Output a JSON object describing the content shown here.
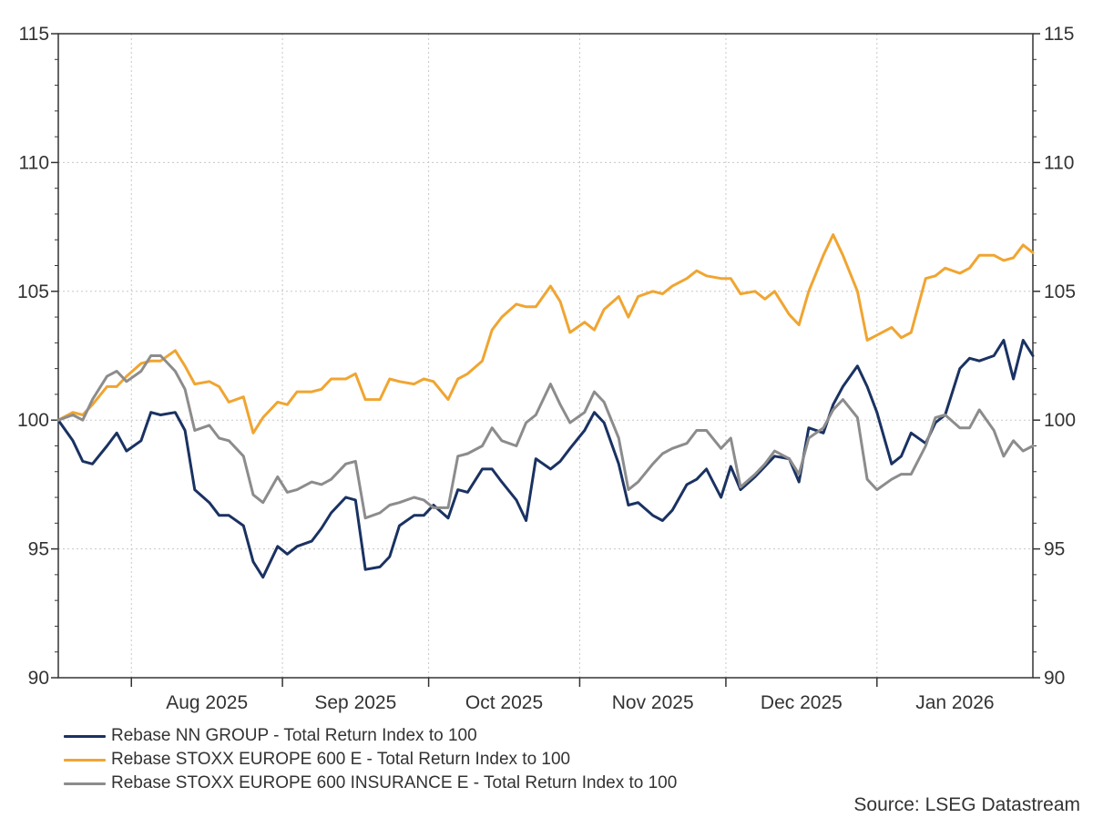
{
  "colors": {
    "nn_group": "#1a3262",
    "stoxx600": "#f0a531",
    "insurance": "#8c8c8c",
    "grid": "#c8c8c8",
    "axis": "#333333"
  },
  "source": "Source: LSEG Datastream",
  "chart_data": {
    "type": "line",
    "ylim": [
      90,
      115
    ],
    "yticks": [
      90,
      95,
      100,
      105,
      110,
      115
    ],
    "ytick_labels": [
      "90",
      "95",
      "100",
      "105",
      "110",
      "115"
    ],
    "x_range": [
      "2025-07-17",
      "2026-02-02"
    ],
    "x_tick_dates": [
      "2025-08-01",
      "2025-09-01",
      "2025-10-01",
      "2025-11-01",
      "2025-12-01",
      "2026-01-01"
    ],
    "x_tick_labels": [
      "Aug 2025",
      "Sep 2025",
      "Oct 2025",
      "Nov 2025",
      "Dec 2025",
      "Jan 2026"
    ],
    "grid": true,
    "legend_position": "bottom-left",
    "series": [
      {
        "name": "Rebase NN GROUP - Total Return Index to 100",
        "color": "#1a3262",
        "points": [
          [
            "2025-07-17",
            100.0
          ],
          [
            "2025-07-20",
            99.2
          ],
          [
            "2025-07-22",
            98.4
          ],
          [
            "2025-07-24",
            98.3
          ],
          [
            "2025-07-27",
            99.0
          ],
          [
            "2025-07-29",
            99.5
          ],
          [
            "2025-07-31",
            98.8
          ],
          [
            "2025-08-03",
            99.2
          ],
          [
            "2025-08-05",
            100.3
          ],
          [
            "2025-08-07",
            100.2
          ],
          [
            "2025-08-10",
            100.3
          ],
          [
            "2025-08-12",
            99.6
          ],
          [
            "2025-08-14",
            97.3
          ],
          [
            "2025-08-17",
            96.8
          ],
          [
            "2025-08-19",
            96.3
          ],
          [
            "2025-08-21",
            96.3
          ],
          [
            "2025-08-24",
            95.9
          ],
          [
            "2025-08-26",
            94.5
          ],
          [
            "2025-08-28",
            93.9
          ],
          [
            "2025-08-31",
            95.1
          ],
          [
            "2025-09-02",
            94.8
          ],
          [
            "2025-09-04",
            95.1
          ],
          [
            "2025-09-07",
            95.3
          ],
          [
            "2025-09-09",
            95.8
          ],
          [
            "2025-09-11",
            96.4
          ],
          [
            "2025-09-14",
            97.0
          ],
          [
            "2025-09-16",
            96.9
          ],
          [
            "2025-09-18",
            94.2
          ],
          [
            "2025-09-21",
            94.3
          ],
          [
            "2025-09-23",
            94.7
          ],
          [
            "2025-09-25",
            95.9
          ],
          [
            "2025-09-28",
            96.3
          ],
          [
            "2025-09-30",
            96.3
          ],
          [
            "2025-10-02",
            96.7
          ],
          [
            "2025-10-05",
            96.2
          ],
          [
            "2025-10-07",
            97.3
          ],
          [
            "2025-10-09",
            97.2
          ],
          [
            "2025-10-12",
            98.1
          ],
          [
            "2025-10-14",
            98.1
          ],
          [
            "2025-10-16",
            97.6
          ],
          [
            "2025-10-19",
            96.9
          ],
          [
            "2025-10-21",
            96.1
          ],
          [
            "2025-10-23",
            98.5
          ],
          [
            "2025-10-26",
            98.1
          ],
          [
            "2025-10-28",
            98.4
          ],
          [
            "2025-10-30",
            98.9
          ],
          [
            "2025-11-02",
            99.6
          ],
          [
            "2025-11-04",
            100.3
          ],
          [
            "2025-11-06",
            99.9
          ],
          [
            "2025-11-09",
            98.3
          ],
          [
            "2025-11-11",
            96.7
          ],
          [
            "2025-11-13",
            96.8
          ],
          [
            "2025-11-16",
            96.3
          ],
          [
            "2025-11-18",
            96.1
          ],
          [
            "2025-11-20",
            96.5
          ],
          [
            "2025-11-23",
            97.5
          ],
          [
            "2025-11-25",
            97.7
          ],
          [
            "2025-11-27",
            98.1
          ],
          [
            "2025-11-30",
            97.0
          ],
          [
            "2025-12-02",
            98.2
          ],
          [
            "2025-12-04",
            97.3
          ],
          [
            "2025-12-07",
            97.8
          ],
          [
            "2025-12-09",
            98.2
          ],
          [
            "2025-12-11",
            98.6
          ],
          [
            "2025-12-14",
            98.5
          ],
          [
            "2025-12-16",
            97.6
          ],
          [
            "2025-12-18",
            99.7
          ],
          [
            "2025-12-21",
            99.5
          ],
          [
            "2025-12-23",
            100.6
          ],
          [
            "2025-12-25",
            101.3
          ],
          [
            "2025-12-28",
            102.1
          ],
          [
            "2025-12-30",
            101.3
          ],
          [
            "2026-01-01",
            100.3
          ],
          [
            "2026-01-04",
            98.3
          ],
          [
            "2026-01-06",
            98.6
          ],
          [
            "2026-01-08",
            99.5
          ],
          [
            "2026-01-11",
            99.1
          ],
          [
            "2026-01-13",
            99.9
          ],
          [
            "2026-01-15",
            100.2
          ],
          [
            "2026-01-18",
            102.0
          ],
          [
            "2026-01-20",
            102.4
          ],
          [
            "2026-01-22",
            102.3
          ],
          [
            "2026-01-25",
            102.5
          ],
          [
            "2026-01-27",
            103.1
          ],
          [
            "2026-01-29",
            101.6
          ],
          [
            "2026-01-31",
            103.1
          ],
          [
            "2026-02-02",
            102.5
          ]
        ]
      },
      {
        "name": "Rebase STOXX EUROPE 600 E - Total Return Index to 100",
        "color": "#f0a531",
        "points": [
          [
            "2025-07-17",
            100.0
          ],
          [
            "2025-07-20",
            100.3
          ],
          [
            "2025-07-22",
            100.2
          ],
          [
            "2025-07-24",
            100.6
          ],
          [
            "2025-07-27",
            101.3
          ],
          [
            "2025-07-29",
            101.3
          ],
          [
            "2025-07-31",
            101.7
          ],
          [
            "2025-08-03",
            102.2
          ],
          [
            "2025-08-05",
            102.3
          ],
          [
            "2025-08-07",
            102.3
          ],
          [
            "2025-08-10",
            102.7
          ],
          [
            "2025-08-12",
            102.1
          ],
          [
            "2025-08-14",
            101.4
          ],
          [
            "2025-08-17",
            101.5
          ],
          [
            "2025-08-19",
            101.3
          ],
          [
            "2025-08-21",
            100.7
          ],
          [
            "2025-08-24",
            100.9
          ],
          [
            "2025-08-26",
            99.5
          ],
          [
            "2025-08-28",
            100.1
          ],
          [
            "2025-08-31",
            100.7
          ],
          [
            "2025-09-02",
            100.6
          ],
          [
            "2025-09-04",
            101.1
          ],
          [
            "2025-09-07",
            101.1
          ],
          [
            "2025-09-09",
            101.2
          ],
          [
            "2025-09-11",
            101.6
          ],
          [
            "2025-09-14",
            101.6
          ],
          [
            "2025-09-16",
            101.8
          ],
          [
            "2025-09-18",
            100.8
          ],
          [
            "2025-09-21",
            100.8
          ],
          [
            "2025-09-23",
            101.6
          ],
          [
            "2025-09-25",
            101.5
          ],
          [
            "2025-09-28",
            101.4
          ],
          [
            "2025-09-30",
            101.6
          ],
          [
            "2025-10-02",
            101.5
          ],
          [
            "2025-10-05",
            100.8
          ],
          [
            "2025-10-07",
            101.6
          ],
          [
            "2025-10-09",
            101.8
          ],
          [
            "2025-10-12",
            102.3
          ],
          [
            "2025-10-14",
            103.5
          ],
          [
            "2025-10-16",
            104.0
          ],
          [
            "2025-10-19",
            104.5
          ],
          [
            "2025-10-21",
            104.4
          ],
          [
            "2025-10-23",
            104.4
          ],
          [
            "2025-10-26",
            105.2
          ],
          [
            "2025-10-28",
            104.6
          ],
          [
            "2025-10-30",
            103.4
          ],
          [
            "2025-11-02",
            103.8
          ],
          [
            "2025-11-04",
            103.5
          ],
          [
            "2025-11-06",
            104.3
          ],
          [
            "2025-11-09",
            104.8
          ],
          [
            "2025-11-11",
            104.0
          ],
          [
            "2025-11-13",
            104.8
          ],
          [
            "2025-11-16",
            105.0
          ],
          [
            "2025-11-18",
            104.9
          ],
          [
            "2025-11-20",
            105.2
          ],
          [
            "2025-11-23",
            105.5
          ],
          [
            "2025-11-25",
            105.8
          ],
          [
            "2025-11-27",
            105.6
          ],
          [
            "2025-11-30",
            105.5
          ],
          [
            "2025-12-02",
            105.5
          ],
          [
            "2025-12-04",
            104.9
          ],
          [
            "2025-12-07",
            105.0
          ],
          [
            "2025-12-09",
            104.7
          ],
          [
            "2025-12-11",
            105.0
          ],
          [
            "2025-12-14",
            104.1
          ],
          [
            "2025-12-16",
            103.7
          ],
          [
            "2025-12-18",
            105.0
          ],
          [
            "2025-12-21",
            106.4
          ],
          [
            "2025-12-23",
            107.2
          ],
          [
            "2025-12-25",
            106.4
          ],
          [
            "2025-12-28",
            105.0
          ],
          [
            "2025-12-30",
            103.1
          ],
          [
            "2026-01-01",
            103.3
          ],
          [
            "2026-01-04",
            103.6
          ],
          [
            "2026-01-06",
            103.2
          ],
          [
            "2026-01-08",
            103.4
          ],
          [
            "2026-01-11",
            105.5
          ],
          [
            "2026-01-13",
            105.6
          ],
          [
            "2026-01-15",
            105.9
          ],
          [
            "2026-01-18",
            105.7
          ],
          [
            "2026-01-20",
            105.9
          ],
          [
            "2026-01-22",
            106.4
          ],
          [
            "2026-01-25",
            106.4
          ],
          [
            "2026-01-27",
            106.2
          ],
          [
            "2026-01-29",
            106.3
          ],
          [
            "2026-01-31",
            106.8
          ],
          [
            "2026-02-02",
            106.5
          ]
        ]
      },
      {
        "name": "Rebase STOXX EUROPE 600 INSURANCE E - Total Return Index to 100",
        "color": "#8c8c8c",
        "points": [
          [
            "2025-07-17",
            100.0
          ],
          [
            "2025-07-20",
            100.2
          ],
          [
            "2025-07-22",
            100.0
          ],
          [
            "2025-07-24",
            100.8
          ],
          [
            "2025-07-27",
            101.7
          ],
          [
            "2025-07-29",
            101.9
          ],
          [
            "2025-07-31",
            101.5
          ],
          [
            "2025-08-03",
            101.9
          ],
          [
            "2025-08-05",
            102.5
          ],
          [
            "2025-08-07",
            102.5
          ],
          [
            "2025-08-10",
            101.9
          ],
          [
            "2025-08-12",
            101.2
          ],
          [
            "2025-08-14",
            99.6
          ],
          [
            "2025-08-17",
            99.8
          ],
          [
            "2025-08-19",
            99.3
          ],
          [
            "2025-08-21",
            99.2
          ],
          [
            "2025-08-24",
            98.6
          ],
          [
            "2025-08-26",
            97.1
          ],
          [
            "2025-08-28",
            96.8
          ],
          [
            "2025-08-31",
            97.8
          ],
          [
            "2025-09-02",
            97.2
          ],
          [
            "2025-09-04",
            97.3
          ],
          [
            "2025-09-07",
            97.6
          ],
          [
            "2025-09-09",
            97.5
          ],
          [
            "2025-09-11",
            97.7
          ],
          [
            "2025-09-14",
            98.3
          ],
          [
            "2025-09-16",
            98.4
          ],
          [
            "2025-09-18",
            96.2
          ],
          [
            "2025-09-21",
            96.4
          ],
          [
            "2025-09-23",
            96.7
          ],
          [
            "2025-09-25",
            96.8
          ],
          [
            "2025-09-28",
            97.0
          ],
          [
            "2025-09-30",
            96.9
          ],
          [
            "2025-10-02",
            96.6
          ],
          [
            "2025-10-05",
            96.6
          ],
          [
            "2025-10-07",
            98.6
          ],
          [
            "2025-10-09",
            98.7
          ],
          [
            "2025-10-12",
            99.0
          ],
          [
            "2025-10-14",
            99.7
          ],
          [
            "2025-10-16",
            99.2
          ],
          [
            "2025-10-19",
            99.0
          ],
          [
            "2025-10-21",
            99.9
          ],
          [
            "2025-10-23",
            100.2
          ],
          [
            "2025-10-26",
            101.4
          ],
          [
            "2025-10-28",
            100.6
          ],
          [
            "2025-10-30",
            99.9
          ],
          [
            "2025-11-02",
            100.3
          ],
          [
            "2025-11-04",
            101.1
          ],
          [
            "2025-11-06",
            100.7
          ],
          [
            "2025-11-09",
            99.3
          ],
          [
            "2025-11-11",
            97.3
          ],
          [
            "2025-11-13",
            97.6
          ],
          [
            "2025-11-16",
            98.3
          ],
          [
            "2025-11-18",
            98.7
          ],
          [
            "2025-11-20",
            98.9
          ],
          [
            "2025-11-23",
            99.1
          ],
          [
            "2025-11-25",
            99.6
          ],
          [
            "2025-11-27",
            99.6
          ],
          [
            "2025-11-30",
            98.9
          ],
          [
            "2025-12-02",
            99.3
          ],
          [
            "2025-12-04",
            97.4
          ],
          [
            "2025-12-07",
            97.9
          ],
          [
            "2025-12-09",
            98.3
          ],
          [
            "2025-12-11",
            98.8
          ],
          [
            "2025-12-14",
            98.5
          ],
          [
            "2025-12-16",
            97.9
          ],
          [
            "2025-12-18",
            99.3
          ],
          [
            "2025-12-21",
            99.7
          ],
          [
            "2025-12-23",
            100.4
          ],
          [
            "2025-12-25",
            100.8
          ],
          [
            "2025-12-28",
            100.1
          ],
          [
            "2025-12-30",
            97.7
          ],
          [
            "2026-01-01",
            97.3
          ],
          [
            "2026-01-04",
            97.7
          ],
          [
            "2026-01-06",
            97.9
          ],
          [
            "2026-01-08",
            97.9
          ],
          [
            "2026-01-11",
            99.0
          ],
          [
            "2026-01-13",
            100.1
          ],
          [
            "2026-01-15",
            100.2
          ],
          [
            "2026-01-18",
            99.7
          ],
          [
            "2026-01-20",
            99.7
          ],
          [
            "2026-01-22",
            100.4
          ],
          [
            "2026-01-25",
            99.6
          ],
          [
            "2026-01-27",
            98.6
          ],
          [
            "2026-01-29",
            99.2
          ],
          [
            "2026-01-31",
            98.8
          ],
          [
            "2026-02-02",
            99.0
          ]
        ]
      }
    ]
  }
}
